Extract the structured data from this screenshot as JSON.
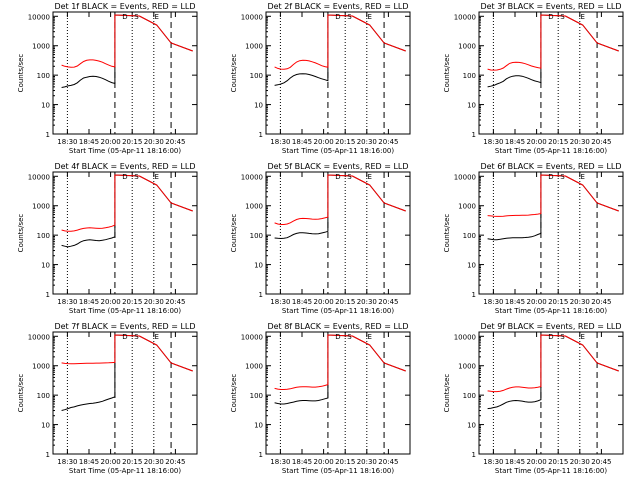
{
  "chart_data": [
    {
      "type": "line",
      "title": "Det 1f  BLACK = Events, RED = LLD",
      "xlabel": "Start Time (05-Apr-11 18:16:00)",
      "ylabel": "Counts/sec",
      "x_ticks": [
        "18:30",
        "18:45",
        "20:00",
        "20:15",
        "20:30",
        "20:45"
      ],
      "y_ticks": [
        "1",
        "10",
        "100",
        "1000",
        "10000"
      ],
      "ylim": [
        1,
        14000
      ],
      "yscale": "log",
      "markers": [
        "D",
        "S",
        "E"
      ],
      "series": [
        {
          "name": "Events",
          "color": "#000000",
          "values": [
            38,
            40,
            43,
            45,
            48,
            55,
            68,
            80,
            85,
            90,
            92,
            90,
            85,
            78,
            70,
            62,
            56,
            52
          ]
        },
        {
          "name": "LLD",
          "color": "#ff0000",
          "values": [
            220,
            200,
            190,
            185,
            188,
            205,
            245,
            290,
            320,
            330,
            330,
            318,
            300,
            275,
            245,
            220,
            200,
            190
          ]
        }
      ]
    },
    {
      "type": "line",
      "title": "Det 2f  BLACK = Events, RED = LLD",
      "xlabel": "Start Time (05-Apr-11 18:16:00)",
      "ylabel": "Counts/sec",
      "x_ticks": [
        "18:30",
        "18:45",
        "20:00",
        "20:15",
        "20:30",
        "20:45"
      ],
      "y_ticks": [
        "1",
        "10",
        "100",
        "1000",
        "10000"
      ],
      "ylim": [
        1,
        14000
      ],
      "yscale": "log",
      "markers": [
        "D",
        "S",
        "E"
      ],
      "series": [
        {
          "name": "Events",
          "color": "#000000",
          "values": [
            45,
            47,
            50,
            55,
            65,
            80,
            95,
            105,
            110,
            112,
            110,
            105,
            98,
            90,
            82,
            75,
            70,
            65
          ]
        },
        {
          "name": "LLD",
          "color": "#ff0000",
          "values": [
            190,
            170,
            160,
            158,
            165,
            185,
            230,
            280,
            310,
            320,
            318,
            305,
            285,
            260,
            235,
            210,
            195,
            185
          ]
        }
      ]
    },
    {
      "type": "line",
      "title": "Det 3f  BLACK = Events, RED = LLD",
      "xlabel": "Start Time (05-Apr-11 18:16:00)",
      "ylabel": "Counts/sec",
      "x_ticks": [
        "18:30",
        "18:45",
        "20:00",
        "20:15",
        "20:30",
        "20:45"
      ],
      "y_ticks": [
        "1",
        "10",
        "100",
        "1000",
        "10000"
      ],
      "ylim": [
        1,
        14000
      ],
      "yscale": "log",
      "markers": [
        "D",
        "S",
        "E"
      ],
      "series": [
        {
          "name": "Events",
          "color": "#000000",
          "values": [
            40,
            42,
            45,
            50,
            55,
            62,
            75,
            85,
            92,
            95,
            95,
            92,
            85,
            78,
            70,
            64,
            60,
            56
          ]
        },
        {
          "name": "LLD",
          "color": "#ff0000",
          "values": [
            160,
            150,
            148,
            150,
            158,
            175,
            210,
            250,
            270,
            275,
            272,
            260,
            245,
            225,
            205,
            190,
            180,
            172
          ]
        }
      ]
    },
    {
      "type": "line",
      "title": "Det 4f  BLACK = Events, RED = LLD",
      "xlabel": "Start Time (05-Apr-11 18:16:00)",
      "ylabel": "Counts/sec",
      "x_ticks": [
        "18:30",
        "18:45",
        "20:00",
        "20:15",
        "20:30",
        "20:45"
      ],
      "y_ticks": [
        "1",
        "10",
        "100",
        "1000",
        "10000"
      ],
      "ylim": [
        1,
        14000
      ],
      "yscale": "log",
      "markers": [
        "D",
        "S",
        "E"
      ],
      "series": [
        {
          "name": "Events",
          "color": "#000000",
          "values": [
            45,
            42,
            40,
            42,
            45,
            50,
            58,
            65,
            68,
            70,
            68,
            66,
            65,
            67,
            70,
            75,
            80,
            88
          ]
        },
        {
          "name": "LLD",
          "color": "#ff0000",
          "values": [
            150,
            140,
            135,
            135,
            140,
            148,
            160,
            170,
            175,
            178,
            175,
            172,
            170,
            172,
            178,
            188,
            200,
            220
          ]
        }
      ]
    },
    {
      "type": "line",
      "title": "Det 5f  BLACK = Events, RED = LLD",
      "xlabel": "Start Time (05-Apr-11 18:16:00)",
      "ylabel": "Counts/sec",
      "x_ticks": [
        "18:30",
        "18:45",
        "20:00",
        "20:15",
        "20:30",
        "20:45"
      ],
      "y_ticks": [
        "1",
        "10",
        "100",
        "1000",
        "10000"
      ],
      "ylim": [
        1,
        14000
      ],
      "yscale": "log",
      "markers": [
        "D",
        "S",
        "E"
      ],
      "series": [
        {
          "name": "Events",
          "color": "#000000",
          "values": [
            80,
            78,
            77,
            78,
            82,
            92,
            105,
            115,
            120,
            120,
            118,
            115,
            112,
            110,
            112,
            118,
            125,
            135
          ]
        },
        {
          "name": "LLD",
          "color": "#ff0000",
          "values": [
            260,
            240,
            230,
            230,
            240,
            262,
            300,
            340,
            365,
            370,
            368,
            360,
            350,
            345,
            350,
            365,
            385,
            410
          ]
        }
      ]
    },
    {
      "type": "line",
      "title": "Det 6f  BLACK = Events, RED = LLD",
      "xlabel": "Start Time (05-Apr-11 18:16:00)",
      "ylabel": "Counts/sec",
      "x_ticks": [
        "18:30",
        "18:45",
        "20:00",
        "20:15",
        "20:30",
        "20:45"
      ],
      "y_ticks": [
        "1",
        "10",
        "100",
        "1000",
        "10000"
      ],
      "ylim": [
        1,
        14000
      ],
      "yscale": "log",
      "markers": [
        "D",
        "S",
        "E"
      ],
      "series": [
        {
          "name": "Events",
          "color": "#000000",
          "values": [
            75,
            72,
            70,
            70,
            72,
            75,
            78,
            80,
            82,
            82,
            82,
            82,
            83,
            85,
            88,
            95,
            105,
            115
          ]
        },
        {
          "name": "LLD",
          "color": "#ff0000",
          "values": [
            460,
            450,
            440,
            435,
            435,
            440,
            450,
            460,
            465,
            468,
            470,
            472,
            475,
            480,
            490,
            505,
            520,
            540
          ]
        }
      ]
    },
    {
      "type": "line",
      "title": "Det 7f  BLACK = Events, RED = LLD",
      "xlabel": "Start Time (05-Apr-11 18:16:00)",
      "ylabel": "Counts/sec",
      "x_ticks": [
        "18:30",
        "18:45",
        "20:00",
        "20:15",
        "20:30",
        "20:45"
      ],
      "y_ticks": [
        "1",
        "10",
        "100",
        "1000",
        "10000"
      ],
      "ylim": [
        1,
        14000
      ],
      "yscale": "log",
      "markers": [
        "D",
        "S",
        "E"
      ],
      "series": [
        {
          "name": "Events",
          "color": "#000000",
          "values": [
            30,
            32,
            35,
            38,
            40,
            43,
            46,
            48,
            50,
            52,
            53,
            55,
            58,
            62,
            68,
            74,
            80,
            88
          ]
        },
        {
          "name": "LLD",
          "color": "#ff0000",
          "values": [
            1250,
            1200,
            1180,
            1170,
            1170,
            1180,
            1190,
            1200,
            1210,
            1215,
            1220,
            1225,
            1230,
            1240,
            1250,
            1260,
            1275,
            1300
          ]
        }
      ]
    },
    {
      "type": "line",
      "title": "Det 8f  BLACK = Events, RED = LLD",
      "xlabel": "Start Time (05-Apr-11 18:16:00)",
      "ylabel": "Counts/sec",
      "x_ticks": [
        "18:30",
        "18:45",
        "20:00",
        "20:15",
        "20:30",
        "20:45"
      ],
      "y_ticks": [
        "1",
        "10",
        "100",
        "1000",
        "10000"
      ],
      "ylim": [
        1,
        14000
      ],
      "yscale": "log",
      "markers": [
        "D",
        "S",
        "E"
      ],
      "series": [
        {
          "name": "Events",
          "color": "#000000",
          "values": [
            55,
            52,
            50,
            50,
            52,
            55,
            58,
            62,
            65,
            66,
            66,
            65,
            64,
            64,
            66,
            70,
            75,
            80
          ]
        },
        {
          "name": "LLD",
          "color": "#ff0000",
          "values": [
            170,
            160,
            155,
            155,
            158,
            165,
            175,
            185,
            190,
            192,
            192,
            190,
            188,
            188,
            192,
            200,
            212,
            228
          ]
        }
      ]
    },
    {
      "type": "line",
      "title": "Det 9f  BLACK = Events, RED = LLD",
      "xlabel": "Start Time (05-Apr-11 18:16:00)",
      "ylabel": "Counts/sec",
      "x_ticks": [
        "18:30",
        "18:45",
        "20:00",
        "20:15",
        "20:30",
        "20:45"
      ],
      "y_ticks": [
        "1",
        "10",
        "100",
        "1000",
        "10000"
      ],
      "ylim": [
        1,
        14000
      ],
      "yscale": "log",
      "markers": [
        "D",
        "S",
        "E"
      ],
      "series": [
        {
          "name": "Events",
          "color": "#000000",
          "values": [
            35,
            36,
            38,
            40,
            44,
            50,
            57,
            62,
            65,
            66,
            65,
            63,
            60,
            58,
            58,
            60,
            64,
            70
          ]
        },
        {
          "name": "LLD",
          "color": "#ff0000",
          "values": [
            140,
            135,
            132,
            132,
            136,
            145,
            160,
            175,
            185,
            190,
            190,
            186,
            180,
            175,
            175,
            178,
            185,
            195
          ]
        }
      ]
    }
  ]
}
